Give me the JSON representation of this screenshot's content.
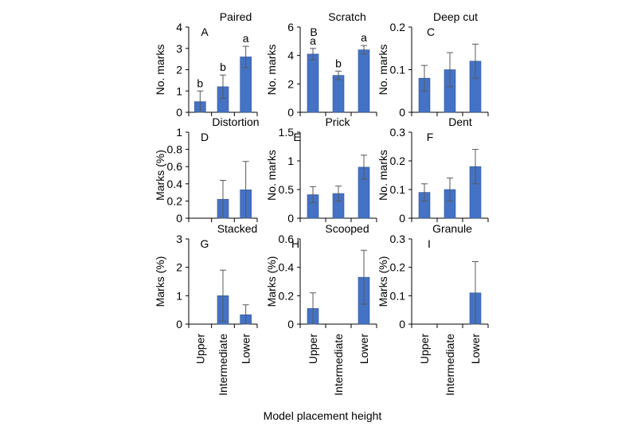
{
  "figure": {
    "xlabel": "Model placement height",
    "categories": [
      "Upper",
      "Intermediate",
      "Lower"
    ]
  },
  "colors": {
    "bar": "#4472c4",
    "bar_edge": "#2f5597",
    "axis": "#000000",
    "error": "#595959"
  },
  "chart_data": [
    {
      "type": "bar",
      "title": "Paired",
      "panel": "A",
      "ylabel": "No. marks",
      "ylim": [
        0,
        4
      ],
      "yticks": [
        "0",
        "1",
        "2",
        "3",
        "4"
      ],
      "categories": [
        "Upper",
        "Intermediate",
        "Lower"
      ],
      "values": [
        0.5,
        1.2,
        2.6
      ],
      "errors": [
        0.5,
        0.55,
        0.5
      ],
      "letters": [
        "b",
        "b",
        "a"
      ]
    },
    {
      "type": "bar",
      "title": "Scratch",
      "panel": "B",
      "ylabel": "No. marks",
      "ylim": [
        0,
        6
      ],
      "yticks": [
        "0",
        "2",
        "4",
        "6"
      ],
      "categories": [
        "Upper",
        "Intermediate",
        "Lower"
      ],
      "values": [
        4.1,
        2.6,
        4.4
      ],
      "errors": [
        0.4,
        0.3,
        0.3
      ],
      "letters": [
        "a",
        "b",
        "a"
      ]
    },
    {
      "type": "bar",
      "title": "Deep cut",
      "panel": "C",
      "ylabel": "No. marks",
      "ylim": [
        0,
        0.2
      ],
      "yticks": [
        "0",
        "0.1",
        "0.2"
      ],
      "categories": [
        "Upper",
        "Intermediate",
        "Lower"
      ],
      "values": [
        0.08,
        0.1,
        0.12
      ],
      "errors": [
        0.03,
        0.04,
        0.04
      ],
      "letters": []
    },
    {
      "type": "bar",
      "title": "Distortion",
      "panel": "D",
      "ylabel": "Marks (%)",
      "ylim": [
        0,
        1
      ],
      "yticks": [
        "0",
        "0.2",
        "0.4",
        "0.6",
        "0.8",
        "1"
      ],
      "categories": [
        "Upper",
        "Intermediate",
        "Lower"
      ],
      "values": [
        0,
        0.22,
        0.33
      ],
      "errors": [
        0,
        0.22,
        0.33
      ],
      "letters": []
    },
    {
      "type": "bar",
      "title": "Prick",
      "panel": "E",
      "ylabel": "No. marks",
      "ylim": [
        0,
        1.5
      ],
      "yticks": [
        "0",
        "0.5",
        "1",
        "1.5"
      ],
      "categories": [
        "Upper",
        "Intermediate",
        "Lower"
      ],
      "values": [
        0.41,
        0.43,
        0.89
      ],
      "errors": [
        0.14,
        0.13,
        0.21
      ],
      "letters": []
    },
    {
      "type": "bar",
      "title": "Dent",
      "panel": "F",
      "ylabel": "No. marks",
      "ylim": [
        0,
        0.3
      ],
      "yticks": [
        "0",
        "0.1",
        "0.2",
        "0.3"
      ],
      "categories": [
        "Upper",
        "Intermediate",
        "Lower"
      ],
      "values": [
        0.09,
        0.1,
        0.18
      ],
      "errors": [
        0.03,
        0.04,
        0.06
      ],
      "letters": []
    },
    {
      "type": "bar",
      "title": "Stacked",
      "panel": "G",
      "ylabel": "Marks (%)",
      "ylim": [
        0,
        3
      ],
      "yticks": [
        "0",
        "1",
        "2",
        "3"
      ],
      "categories": [
        "Upper",
        "Intermediate",
        "Lower"
      ],
      "values": [
        0,
        1.0,
        0.33
      ],
      "errors": [
        0,
        0.9,
        0.35
      ],
      "letters": []
    },
    {
      "type": "bar",
      "title": "Scooped",
      "panel": "H",
      "ylabel": "Marks (%)",
      "ylim": [
        0,
        0.6
      ],
      "yticks": [
        "0",
        "0.2",
        "0.4",
        "0.6"
      ],
      "categories": [
        "Upper",
        "Intermediate",
        "Lower"
      ],
      "values": [
        0.11,
        0,
        0.33
      ],
      "errors": [
        0.11,
        0,
        0.19
      ],
      "letters": []
    },
    {
      "type": "bar",
      "title": "Granule",
      "panel": "I",
      "ylabel": "Marks (%)",
      "ylim": [
        0,
        0.3
      ],
      "yticks": [
        "0",
        "0.1",
        "0.2",
        "0.3"
      ],
      "categories": [
        "Upper",
        "Intermediate",
        "Lower"
      ],
      "values": [
        0,
        0,
        0.11
      ],
      "errors": [
        0,
        0,
        0.11
      ],
      "letters": []
    }
  ]
}
